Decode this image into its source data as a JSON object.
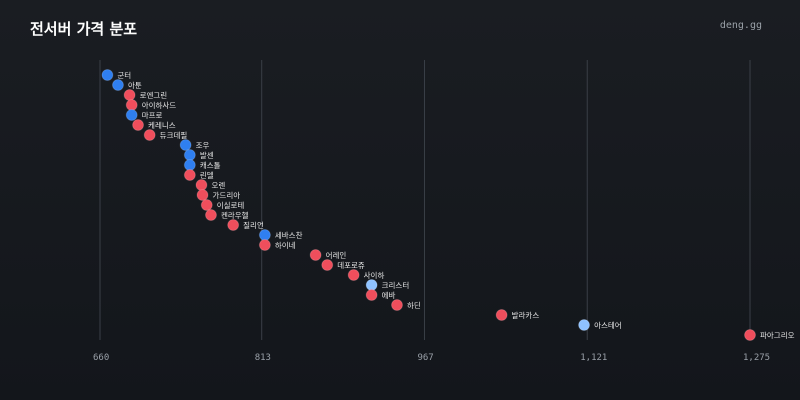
{
  "header": {
    "title": "전서버 가격 분포",
    "brand": "deng.gg"
  },
  "chart_data": {
    "type": "scatter",
    "title": "전서버 가격 분포",
    "xlabel": "",
    "ylabel": "",
    "xlim": [
      660,
      1275
    ],
    "x_ticks": [
      660,
      813,
      967,
      1121,
      1275
    ],
    "x_tick_labels": [
      "660",
      "813",
      "967",
      "1,121",
      "1,275"
    ],
    "grid": true,
    "colors": {
      "red": "#ef4e5c",
      "blue": "#2f7ff0",
      "lightblue": "#8fc2ff"
    },
    "points": [
      {
        "label": "군터",
        "x": 667,
        "color": "blue"
      },
      {
        "label": "아툰",
        "x": 677,
        "color": "blue"
      },
      {
        "label": "로엔그린",
        "x": 688,
        "color": "red"
      },
      {
        "label": "아이하사드",
        "x": 690,
        "color": "red"
      },
      {
        "label": "마프로",
        "x": 690,
        "color": "blue"
      },
      {
        "label": "케레니스",
        "x": 696,
        "color": "red"
      },
      {
        "label": "듀크데필",
        "x": 707,
        "color": "red"
      },
      {
        "label": "조우",
        "x": 741,
        "color": "blue"
      },
      {
        "label": "발센",
        "x": 745,
        "color": "blue"
      },
      {
        "label": "캐스톨",
        "x": 745,
        "color": "blue"
      },
      {
        "label": "린델",
        "x": 745,
        "color": "red"
      },
      {
        "label": "오렌",
        "x": 756,
        "color": "red"
      },
      {
        "label": "가드리아",
        "x": 757,
        "color": "red"
      },
      {
        "label": "이실로테",
        "x": 761,
        "color": "red"
      },
      {
        "label": "켄라우헬",
        "x": 765,
        "color": "red"
      },
      {
        "label": "질리언",
        "x": 786,
        "color": "red"
      },
      {
        "label": "세바스찬",
        "x": 816,
        "color": "blue"
      },
      {
        "label": "하이네",
        "x": 816,
        "color": "red"
      },
      {
        "label": "어레인",
        "x": 864,
        "color": "red"
      },
      {
        "label": "데포로쥬",
        "x": 875,
        "color": "red"
      },
      {
        "label": "사이하",
        "x": 900,
        "color": "red"
      },
      {
        "label": "크리스터",
        "x": 917,
        "color": "lightblue"
      },
      {
        "label": "에바",
        "x": 917,
        "color": "red"
      },
      {
        "label": "하딘",
        "x": 941,
        "color": "red"
      },
      {
        "label": "발라카스",
        "x": 1040,
        "color": "red"
      },
      {
        "label": "아스테어",
        "x": 1118,
        "color": "lightblue"
      },
      {
        "label": "파아그리오",
        "x": 1313,
        "color": "red"
      }
    ]
  }
}
